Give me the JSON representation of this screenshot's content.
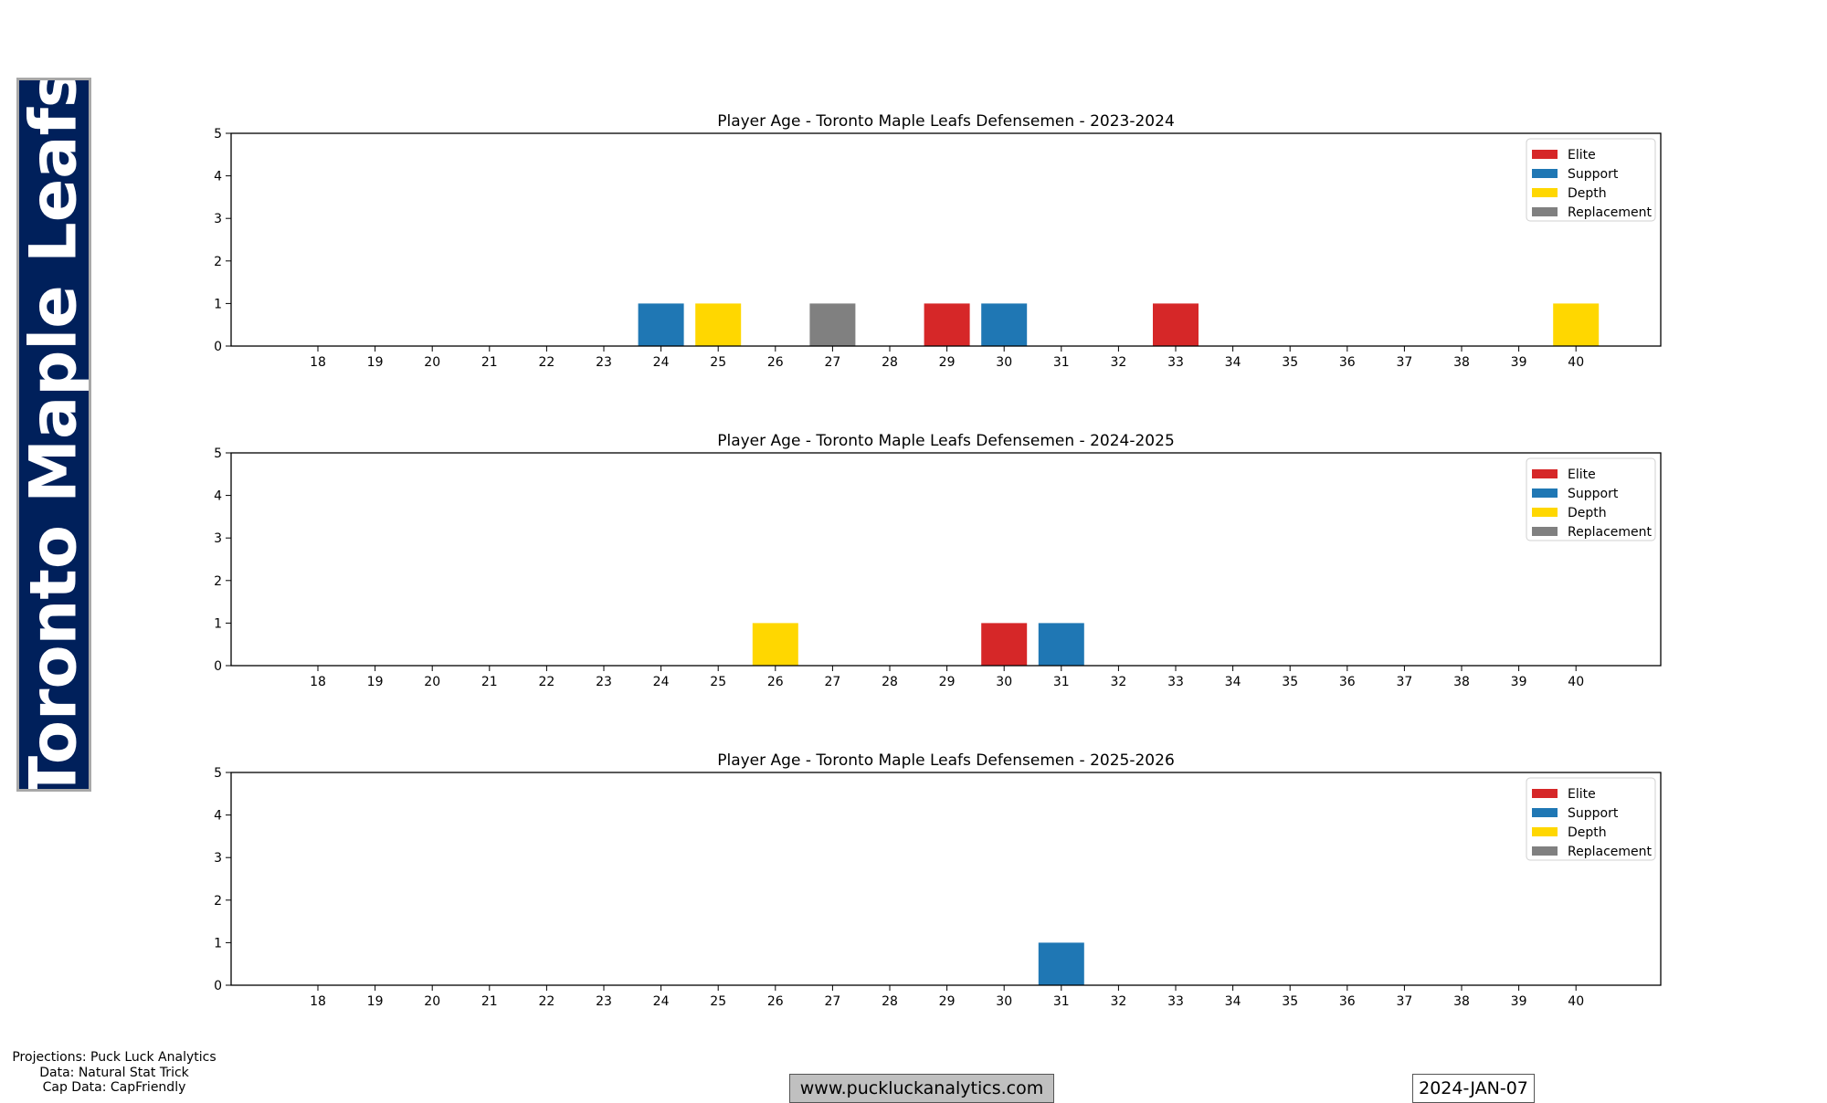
{
  "team": {
    "name": "Toronto Maple Leafs",
    "color": "#00205B"
  },
  "footer": {
    "credits": [
      "Projections: Puck Luck Analytics",
      "Data: Natural Stat Trick",
      "Cap Data: CapFriendly"
    ],
    "website": "www.puckluckanalytics.com",
    "date": "2024-JAN-07"
  },
  "legend_entries": [
    {
      "name": "Elite",
      "color": "#d62728"
    },
    {
      "name": "Support",
      "color": "#1f77b4"
    },
    {
      "name": "Depth",
      "color": "#ffd700"
    },
    {
      "name": "Replacement",
      "color": "#808080"
    }
  ],
  "chart_data": [
    {
      "type": "bar",
      "title": "Player Age - Toronto Maple Leafs Defensemen - 2023-2024",
      "categories": [
        18,
        19,
        20,
        21,
        22,
        23,
        24,
        25,
        26,
        27,
        28,
        29,
        30,
        31,
        32,
        33,
        34,
        35,
        36,
        37,
        38,
        39,
        40
      ],
      "ylim": [
        0,
        5
      ],
      "yticks": [
        0,
        1,
        2,
        3,
        4,
        5
      ],
      "legend_position": "top-right",
      "grid": false,
      "bars": [
        {
          "x": 24,
          "value": 1,
          "tier": "Support"
        },
        {
          "x": 25,
          "value": 1,
          "tier": "Depth"
        },
        {
          "x": 27,
          "value": 1,
          "tier": "Replacement"
        },
        {
          "x": 29,
          "value": 1,
          "tier": "Elite"
        },
        {
          "x": 30,
          "value": 1,
          "tier": "Support"
        },
        {
          "x": 33,
          "value": 1,
          "tier": "Elite"
        },
        {
          "x": 40,
          "value": 1,
          "tier": "Depth"
        }
      ]
    },
    {
      "type": "bar",
      "title": "Player Age - Toronto Maple Leafs Defensemen - 2024-2025",
      "categories": [
        18,
        19,
        20,
        21,
        22,
        23,
        24,
        25,
        26,
        27,
        28,
        29,
        30,
        31,
        32,
        33,
        34,
        35,
        36,
        37,
        38,
        39,
        40
      ],
      "ylim": [
        0,
        5
      ],
      "yticks": [
        0,
        1,
        2,
        3,
        4,
        5
      ],
      "legend_position": "top-right",
      "grid": false,
      "bars": [
        {
          "x": 26,
          "value": 1,
          "tier": "Depth"
        },
        {
          "x": 30,
          "value": 1,
          "tier": "Elite"
        },
        {
          "x": 31,
          "value": 1,
          "tier": "Support"
        }
      ]
    },
    {
      "type": "bar",
      "title": "Player Age - Toronto Maple Leafs Defensemen - 2025-2026",
      "categories": [
        18,
        19,
        20,
        21,
        22,
        23,
        24,
        25,
        26,
        27,
        28,
        29,
        30,
        31,
        32,
        33,
        34,
        35,
        36,
        37,
        38,
        39,
        40
      ],
      "ylim": [
        0,
        5
      ],
      "yticks": [
        0,
        1,
        2,
        3,
        4,
        5
      ],
      "legend_position": "top-right",
      "grid": false,
      "bars": [
        {
          "x": 31,
          "value": 1,
          "tier": "Support"
        }
      ]
    }
  ]
}
